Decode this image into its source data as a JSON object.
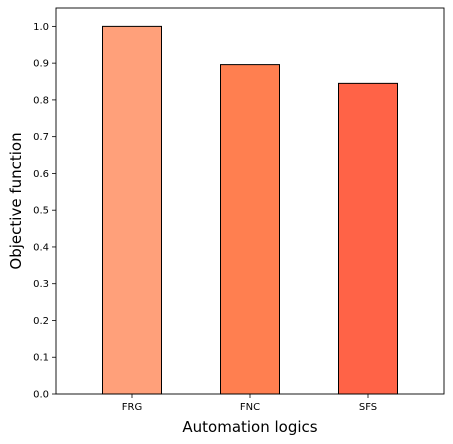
{
  "chart_data": {
    "type": "bar",
    "title": "",
    "xlabel": "Automation logics",
    "ylabel": "Objective function",
    "categories": [
      "FRG",
      "FNC",
      "SFS"
    ],
    "values": [
      1.0,
      0.896,
      0.845
    ],
    "colors": [
      "#FFA07A",
      "#FF7F50",
      "#FF6347"
    ],
    "bar_edge_color": "#000000",
    "ylim": [
      0,
      1.05
    ],
    "yticks": [
      0.0,
      0.1,
      0.2,
      0.3,
      0.4,
      0.5,
      0.6,
      0.7,
      0.8,
      0.9,
      1.0
    ],
    "ytick_labels": [
      "0.0",
      "0.1",
      "0.2",
      "0.3",
      "0.4",
      "0.5",
      "0.6",
      "0.7",
      "0.8",
      "0.9",
      "1.0"
    ],
    "grid": false,
    "legend": null
  }
}
